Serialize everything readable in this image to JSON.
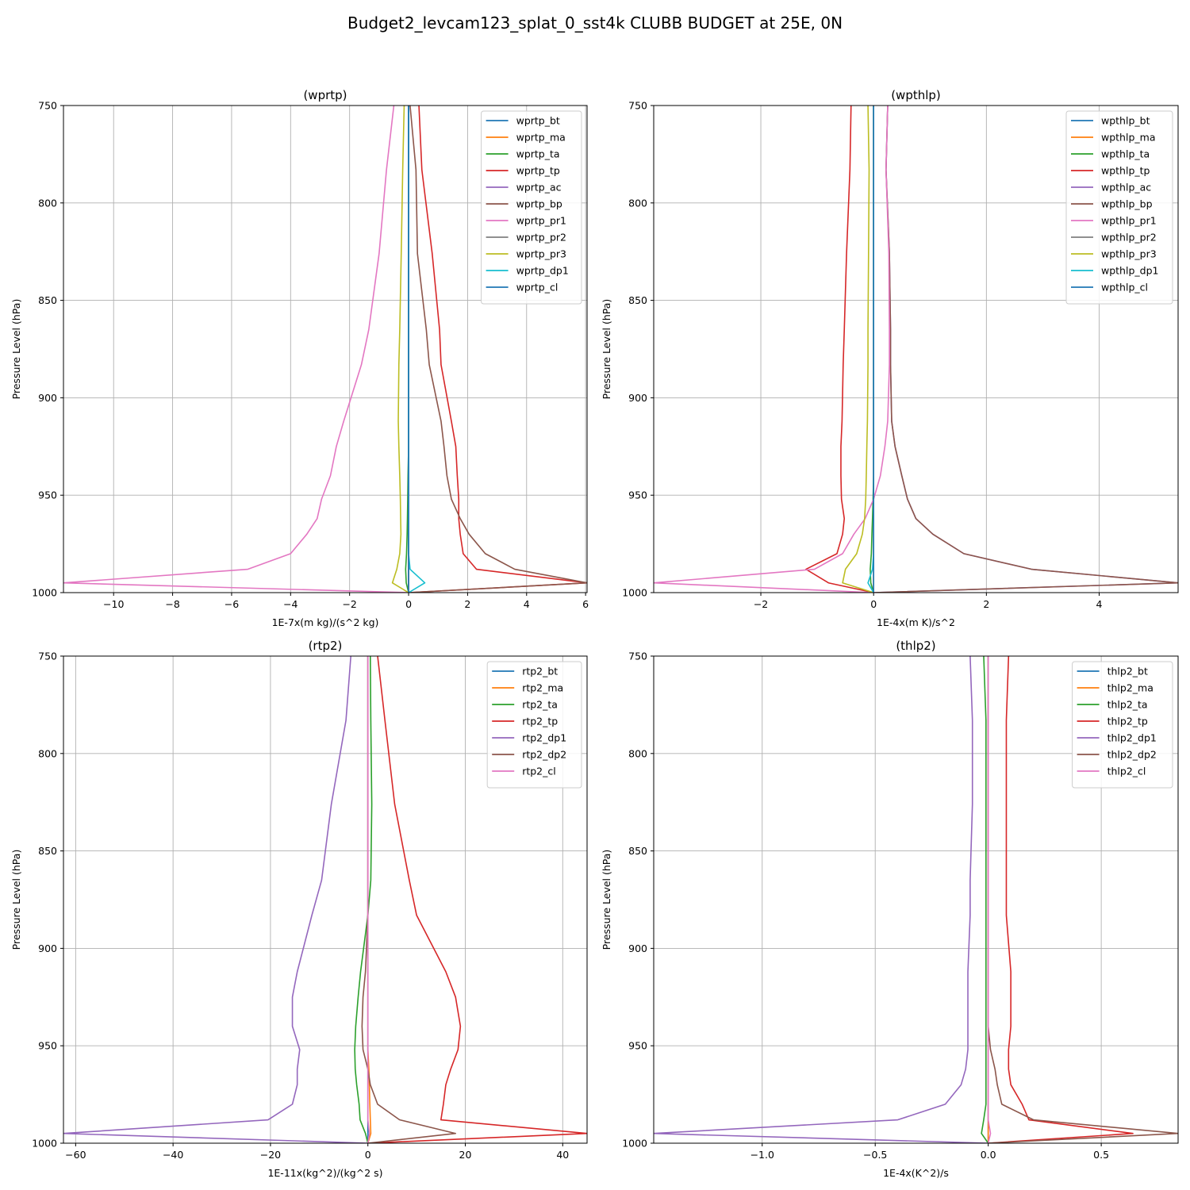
{
  "figure_title": "Budget2_levcam123_splat_0_sst4k CLUBB BUDGET at 25E, 0N",
  "chart_data": [
    {
      "type": "line",
      "title": "(wprtp)",
      "xlabel": "1E-7x(m kg)/(s^2 kg)",
      "ylabel": "Pressure Level (hPa)",
      "xlim": [
        -11.7,
        6.05
      ],
      "ylim": [
        1000,
        750
      ],
      "xticks": [
        -10,
        -8,
        -6,
        -4,
        -2,
        0,
        2,
        4,
        6
      ],
      "xtick_labels": [
        "−10",
        "−8",
        "−6",
        "−4",
        "−2",
        "0",
        "2",
        "4",
        "6"
      ],
      "yticks": [
        750,
        800,
        850,
        900,
        950,
        1000
      ],
      "ytick_labels": [
        "750",
        "800",
        "850",
        "900",
        "950",
        "1000"
      ],
      "grid": true,
      "legend": "top-right",
      "y": [
        750,
        783,
        826,
        865,
        883,
        912,
        925,
        940,
        952,
        962,
        970,
        980,
        988,
        995,
        1000
      ],
      "series": [
        {
          "name": "wprtp_bt",
          "color": "#1f77b4",
          "values": [
            0,
            0,
            0,
            0,
            0,
            0,
            0,
            0,
            0,
            0,
            0,
            0,
            0,
            0,
            0
          ]
        },
        {
          "name": "wprtp_ma",
          "color": "#ff7f0e",
          "values": [
            0,
            0,
            0,
            0,
            0,
            0,
            0,
            0,
            0,
            0,
            0,
            0,
            0,
            0,
            0
          ]
        },
        {
          "name": "wprtp_ta",
          "color": "#2ca02c",
          "values": [
            0,
            0,
            0,
            0,
            0,
            0,
            0,
            -0.02,
            -0.03,
            -0.04,
            -0.05,
            -0.07,
            -0.1,
            -0.08,
            0
          ]
        },
        {
          "name": "wprtp_tp",
          "color": "#d62728",
          "values": [
            0.35,
            0.45,
            0.8,
            1.05,
            1.1,
            1.45,
            1.6,
            1.65,
            1.7,
            1.7,
            1.75,
            1.85,
            2.3,
            6.05,
            0
          ]
        },
        {
          "name": "wprtp_ac",
          "color": "#9467bd",
          "values": [
            0,
            0,
            0,
            0,
            0,
            0,
            0,
            0,
            0,
            0,
            0,
            0,
            0,
            0,
            0
          ]
        },
        {
          "name": "wprtp_bp",
          "color": "#8c564b",
          "values": [
            0.05,
            0.25,
            0.3,
            0.6,
            0.7,
            1.1,
            1.2,
            1.3,
            1.45,
            1.75,
            2.05,
            2.6,
            3.6,
            6.05,
            0
          ]
        },
        {
          "name": "wprtp_pr1",
          "color": "#e377c2",
          "values": [
            -0.5,
            -0.75,
            -1.0,
            -1.35,
            -1.6,
            -2.2,
            -2.45,
            -2.65,
            -2.95,
            -3.1,
            -3.45,
            -4.0,
            -5.45,
            -11.7,
            0
          ]
        },
        {
          "name": "wprtp_pr2",
          "color": "#7f7f7f",
          "values": [
            0,
            0,
            0,
            0,
            0,
            0,
            0,
            0,
            0,
            0,
            0,
            0,
            0,
            0,
            0
          ]
        },
        {
          "name": "wprtp_pr3",
          "color": "#bcbd22",
          "values": [
            -0.15,
            -0.2,
            -0.25,
            -0.3,
            -0.33,
            -0.35,
            -0.33,
            -0.3,
            -0.28,
            -0.27,
            -0.26,
            -0.3,
            -0.4,
            -0.55,
            0
          ]
        },
        {
          "name": "wprtp_dp1",
          "color": "#17becf",
          "values": [
            0,
            0,
            0,
            0,
            0,
            0,
            0,
            0,
            0,
            0,
            0,
            0,
            0.05,
            0.55,
            0
          ]
        },
        {
          "name": "wprtp_cl",
          "color": "#1f77b4",
          "values": [
            0,
            0,
            0,
            0,
            0,
            0,
            0,
            0,
            0,
            0,
            0,
            0,
            0,
            0,
            0
          ]
        }
      ]
    },
    {
      "type": "line",
      "title": "(wpthlp)",
      "xlabel": "1E-4x(m K)/s^2",
      "ylabel": "Pressure Level (hPa)",
      "xlim": [
        -3.9,
        5.4
      ],
      "ylim": [
        1000,
        750
      ],
      "xticks": [
        -2,
        0,
        2,
        4
      ],
      "xtick_labels": [
        "−2",
        "0",
        "2",
        "4"
      ],
      "yticks": [
        750,
        800,
        850,
        900,
        950,
        1000
      ],
      "ytick_labels": [
        "750",
        "800",
        "850",
        "900",
        "950",
        "1000"
      ],
      "grid": true,
      "legend": "top-right",
      "y": [
        750,
        783,
        826,
        865,
        883,
        912,
        925,
        940,
        952,
        962,
        970,
        980,
        988,
        995,
        1000
      ],
      "series": [
        {
          "name": "wpthlp_bt",
          "color": "#1f77b4",
          "values": [
            0,
            0,
            0,
            0,
            0,
            0,
            0,
            0,
            0,
            0,
            0,
            0,
            0,
            0,
            0
          ]
        },
        {
          "name": "wpthlp_ma",
          "color": "#ff7f0e",
          "values": [
            0,
            0,
            0,
            0,
            0,
            0,
            0,
            0,
            0,
            0,
            0,
            0,
            0,
            0,
            0
          ]
        },
        {
          "name": "wpthlp_ta",
          "color": "#2ca02c",
          "values": [
            0,
            0,
            0,
            0,
            0,
            0,
            0,
            0,
            -0.01,
            -0.02,
            -0.03,
            -0.04,
            -0.06,
            -0.05,
            0
          ]
        },
        {
          "name": "wpthlp_tp",
          "color": "#d62728",
          "values": [
            -0.4,
            -0.42,
            -0.48,
            -0.52,
            -0.54,
            -0.56,
            -0.58,
            -0.58,
            -0.57,
            -0.52,
            -0.55,
            -0.65,
            -1.2,
            -0.8,
            0
          ]
        },
        {
          "name": "wpthlp_ac",
          "color": "#9467bd",
          "values": [
            0.25,
            0.22,
            0.28,
            0.3,
            0.3,
            0.32,
            0.38,
            0.5,
            0.6,
            0.75,
            1.05,
            1.6,
            2.8,
            5.4,
            0
          ]
        },
        {
          "name": "wpthlp_bp",
          "color": "#8c564b",
          "values": [
            0.25,
            0.22,
            0.28,
            0.3,
            0.3,
            0.32,
            0.38,
            0.5,
            0.6,
            0.75,
            1.05,
            1.6,
            2.8,
            5.4,
            0
          ]
        },
        {
          "name": "wpthlp_pr1",
          "color": "#e377c2",
          "values": [
            0.25,
            0.22,
            0.27,
            0.28,
            0.28,
            0.25,
            0.2,
            0.12,
            0,
            -0.15,
            -0.35,
            -0.55,
            -1.05,
            -3.9,
            0
          ]
        },
        {
          "name": "wpthlp_pr2",
          "color": "#7f7f7f",
          "values": [
            0,
            0,
            0,
            0,
            0,
            0,
            0,
            0,
            0,
            0,
            0,
            0,
            0,
            0,
            0
          ]
        },
        {
          "name": "wpthlp_pr3",
          "color": "#bcbd22",
          "values": [
            -0.1,
            -0.08,
            -0.09,
            -0.1,
            -0.1,
            -0.11,
            -0.12,
            -0.13,
            -0.14,
            -0.16,
            -0.2,
            -0.3,
            -0.5,
            -0.55,
            0
          ]
        },
        {
          "name": "wpthlp_dp1",
          "color": "#17becf",
          "values": [
            0,
            0,
            0,
            0,
            0,
            0,
            0,
            0,
            0,
            0,
            0,
            0,
            -0.02,
            -0.1,
            0
          ]
        },
        {
          "name": "wpthlp_cl",
          "color": "#1f77b4",
          "values": [
            0,
            0,
            0,
            0,
            0,
            0,
            0,
            0,
            0,
            0,
            0,
            0,
            0,
            0,
            0
          ]
        }
      ]
    },
    {
      "type": "line",
      "title": "(rtp2)",
      "xlabel": "1E-11x(kg^2)/(kg^2 s)",
      "ylabel": "Pressure Level (hPa)",
      "xlim": [
        -62.5,
        45
      ],
      "ylim": [
        1000,
        750
      ],
      "xticks": [
        -60,
        -40,
        -20,
        0,
        20,
        40
      ],
      "xtick_labels": [
        "−60",
        "−40",
        "−20",
        "0",
        "20",
        "40"
      ],
      "yticks": [
        750,
        800,
        850,
        900,
        950,
        1000
      ],
      "ytick_labels": [
        "750",
        "800",
        "850",
        "900",
        "950",
        "1000"
      ],
      "grid": true,
      "legend": "top-right",
      "y": [
        750,
        783,
        826,
        865,
        883,
        912,
        925,
        940,
        952,
        962,
        970,
        980,
        988,
        995,
        1000
      ],
      "series": [
        {
          "name": "rtp2_bt",
          "color": "#1f77b4",
          "values": [
            0,
            0,
            0,
            0,
            0,
            0,
            0,
            0,
            0,
            0,
            0,
            0,
            0,
            0,
            0
          ]
        },
        {
          "name": "rtp2_ma",
          "color": "#ff7f0e",
          "values": [
            0,
            0,
            0,
            0,
            0,
            0,
            0,
            0,
            0,
            0.2,
            0.3,
            0.4,
            0.5,
            0.6,
            0
          ]
        },
        {
          "name": "rtp2_ta",
          "color": "#2ca02c",
          "values": [
            0.5,
            0.6,
            0.8,
            0.6,
            0,
            -1.5,
            -2.0,
            -2.5,
            -2.7,
            -2.6,
            -2.3,
            -1.8,
            -1.6,
            -0.5,
            0
          ]
        },
        {
          "name": "rtp2_tp",
          "color": "#d62728",
          "values": [
            2.0,
            3.5,
            5.5,
            8.5,
            10.0,
            16.0,
            18.0,
            19.0,
            18.5,
            17.0,
            16.0,
            15.5,
            15.0,
            45.0,
            0
          ]
        },
        {
          "name": "rtp2_dp1",
          "color": "#9467bd",
          "values": [
            -3.5,
            -4.5,
            -7.5,
            -9.5,
            -11.5,
            -14.5,
            -15.5,
            -15.5,
            -14.0,
            -14.5,
            -14.5,
            -15.5,
            -20.5,
            -62.5,
            0
          ]
        },
        {
          "name": "rtp2_dp2",
          "color": "#8c564b",
          "values": [
            0,
            0,
            0,
            0,
            0,
            -0.5,
            -1.0,
            -1.2,
            -1.0,
            0,
            0.5,
            2.0,
            6.5,
            18.0,
            0
          ]
        },
        {
          "name": "rtp2_cl",
          "color": "#e377c2",
          "values": [
            0,
            0,
            0,
            0,
            0,
            0,
            0,
            0,
            0,
            0,
            0,
            0,
            0,
            0.3,
            0
          ]
        }
      ]
    },
    {
      "type": "line",
      "title": "(thlp2)",
      "xlabel": "1E-4x(K^2)/s",
      "ylabel": "Pressure Level (hPa)",
      "xlim": [
        -1.48,
        0.84
      ],
      "ylim": [
        1000,
        750
      ],
      "xticks": [
        -1.0,
        -0.5,
        0.0,
        0.5
      ],
      "xtick_labels": [
        "−1.0",
        "−0.5",
        "0.0",
        "0.5"
      ],
      "yticks": [
        750,
        800,
        850,
        900,
        950,
        1000
      ],
      "ytick_labels": [
        "750",
        "800",
        "850",
        "900",
        "950",
        "1000"
      ],
      "grid": true,
      "legend": "top-right",
      "y": [
        750,
        783,
        826,
        865,
        883,
        912,
        925,
        940,
        952,
        962,
        970,
        980,
        988,
        995,
        1000
      ],
      "series": [
        {
          "name": "thlp2_bt",
          "color": "#1f77b4",
          "values": [
            0,
            0,
            0,
            0,
            0,
            0,
            0,
            0,
            0,
            0,
            0,
            0,
            0,
            0,
            0
          ]
        },
        {
          "name": "thlp2_ma",
          "color": "#ff7f0e",
          "values": [
            0,
            0,
            0,
            0,
            0,
            0,
            0,
            0,
            0,
            0,
            0,
            0,
            0,
            0,
            0
          ]
        },
        {
          "name": "thlp2_ta",
          "color": "#2ca02c",
          "values": [
            -0.02,
            -0.01,
            -0.01,
            -0.01,
            -0.01,
            -0.01,
            -0.01,
            -0.01,
            -0.01,
            -0.01,
            -0.01,
            -0.01,
            -0.02,
            -0.03,
            0
          ]
        },
        {
          "name": "thlp2_tp",
          "color": "#d62728",
          "values": [
            0.09,
            0.08,
            0.08,
            0.08,
            0.08,
            0.1,
            0.1,
            0.1,
            0.09,
            0.09,
            0.1,
            0.15,
            0.18,
            0.64,
            0
          ]
        },
        {
          "name": "thlp2_dp1",
          "color": "#9467bd",
          "values": [
            -0.08,
            -0.07,
            -0.07,
            -0.08,
            -0.08,
            -0.09,
            -0.09,
            -0.09,
            -0.09,
            -0.1,
            -0.12,
            -0.19,
            -0.4,
            -1.48,
            0
          ]
        },
        {
          "name": "thlp2_dp2",
          "color": "#8c564b",
          "values": [
            0,
            0,
            0,
            0,
            0,
            0,
            0,
            0,
            0.01,
            0.03,
            0.04,
            0.06,
            0.2,
            0.84,
            0
          ]
        },
        {
          "name": "thlp2_cl",
          "color": "#e377c2",
          "values": [
            0,
            0,
            0,
            0,
            0,
            0,
            0,
            0,
            0,
            0,
            0,
            0,
            0,
            0.01,
            0
          ]
        }
      ]
    }
  ]
}
